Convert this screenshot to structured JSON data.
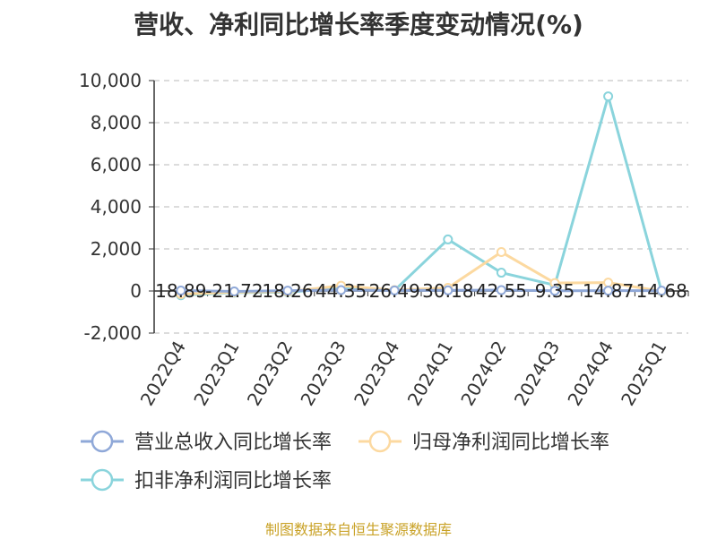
{
  "title": "营收、净利同比增长率季度变动情况(%)",
  "source": "制图数据来自恒生聚源数据库",
  "chart_data": {
    "type": "line",
    "title": "营收、净利同比增长率季度变动情况(%)",
    "categories": [
      "2022Q4",
      "2023Q1",
      "2023Q2",
      "2023Q3",
      "2023Q4",
      "2024Q1",
      "2024Q2",
      "2024Q3",
      "2024Q4",
      "2025Q1"
    ],
    "ylim": [
      -2000,
      10000
    ],
    "yticks": [
      -2000,
      0,
      2000,
      4000,
      6000,
      8000,
      10000
    ],
    "ytick_labels": [
      "-2,000",
      "0",
      "2,000",
      "4,000",
      "6,000",
      "8,000",
      "10,000"
    ],
    "grid": true,
    "legend_position": "bottom",
    "series": [
      {
        "name": "营业总收入同比增长率",
        "color": "#8fa8d8",
        "values": [
          18.89,
          -21.72,
          18.26,
          44.35,
          26.49,
          30.18,
          42.55,
          9.35,
          14.87,
          14.68
        ]
      },
      {
        "name": "归母净利润同比增长率",
        "color": "#fcd9a0",
        "values": [
          -150,
          -60,
          -30,
          250,
          40,
          150,
          1850,
          380,
          400,
          -10
        ]
      },
      {
        "name": "扣非净利润同比增长率",
        "color": "#8ad4dc",
        "values": [
          -200,
          -80,
          -60,
          150,
          30,
          2450,
          870,
          280,
          9250,
          -20
        ]
      }
    ],
    "data_labels": [
      "18.89",
      "-21.72",
      "18.26",
      "44.35",
      "26.49",
      "30.18",
      "42.55",
      "9.35",
      "14.87",
      "14.68"
    ]
  }
}
